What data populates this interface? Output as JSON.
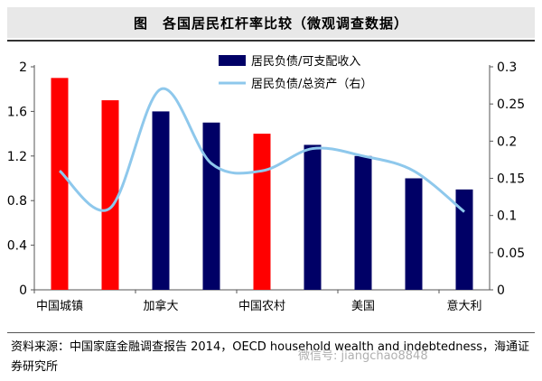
{
  "title": "图　各国居民杠杆率比较（微观调查数据）",
  "chart_data": {
    "type": "bar+line",
    "title": "各国居民杠杆率比较（微观调查数据）",
    "categories": [
      "中国城镇",
      "",
      "加拿大",
      "",
      "中国农村",
      "",
      "美国",
      "",
      "意大利"
    ],
    "category_labels": [
      "中国城镇",
      "加拿大",
      "中国农村",
      "美国",
      "意大利"
    ],
    "bar_series": {
      "name": "居民负债/可支配收入",
      "axis": "left",
      "values": [
        1.9,
        1.7,
        1.6,
        1.5,
        1.4,
        1.3,
        1.2,
        1.0,
        0.9
      ],
      "colors": [
        "#ff0000",
        "#ff0000",
        "#000066",
        "#000066",
        "#ff0000",
        "#000066",
        "#000066",
        "#000066",
        "#000066"
      ]
    },
    "line_series": {
      "name": "居民负债/总资产（右）",
      "axis": "right",
      "color": "#8ec8ec",
      "values": [
        0.16,
        0.11,
        0.27,
        0.17,
        0.16,
        0.19,
        0.18,
        0.16,
        0.105
      ]
    },
    "y_left": {
      "min": 0,
      "max": 2,
      "ticks": [
        "0",
        "0.4",
        "0.8",
        "1.2",
        "1.6",
        "2"
      ]
    },
    "y_right": {
      "min": 0,
      "max": 0.3,
      "ticks": [
        "0",
        "0.05",
        "0.1",
        "0.15",
        "0.2",
        "0.25",
        "0.3"
      ]
    },
    "legend": [
      "居民负债/可支配收入",
      "居民负债/总资产（右）"
    ],
    "legend_position": "top-right"
  },
  "source_text": "资料来源：中国家庭金融调查报告 2014，OECD household wealth and indebtedness，海通证券研究所",
  "watermark_text": "微信号: jiangchao8848",
  "colors": {
    "red": "#ff0000",
    "navy": "#000066",
    "line": "#8ec8ec"
  }
}
